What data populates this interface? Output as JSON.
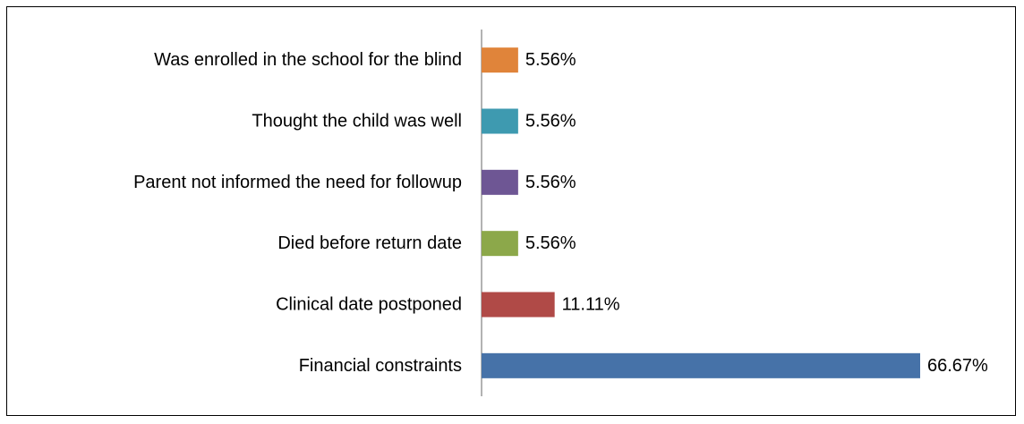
{
  "chart_data": {
    "type": "bar",
    "orientation": "horizontal",
    "categories": [
      "Was enrolled in the school for the blind",
      "Thought the child was well",
      "Parent not informed the need for followup",
      "Died before return date",
      "Clinical date postponed",
      "Financial constraints"
    ],
    "values": [
      5.56,
      5.56,
      5.56,
      5.56,
      11.11,
      66.67
    ],
    "value_labels": [
      "5.56%",
      "5.56%",
      "5.56%",
      "5.56%",
      "11.11%",
      "66.67%"
    ],
    "colors": [
      "#E0843A",
      "#3E9AB0",
      "#6E5694",
      "#8CA84A",
      "#B04A47",
      "#4672A8"
    ],
    "title": "",
    "xlabel": "",
    "ylabel": "",
    "xlim": [
      0,
      66.67
    ],
    "grid": false,
    "legend": "none"
  }
}
